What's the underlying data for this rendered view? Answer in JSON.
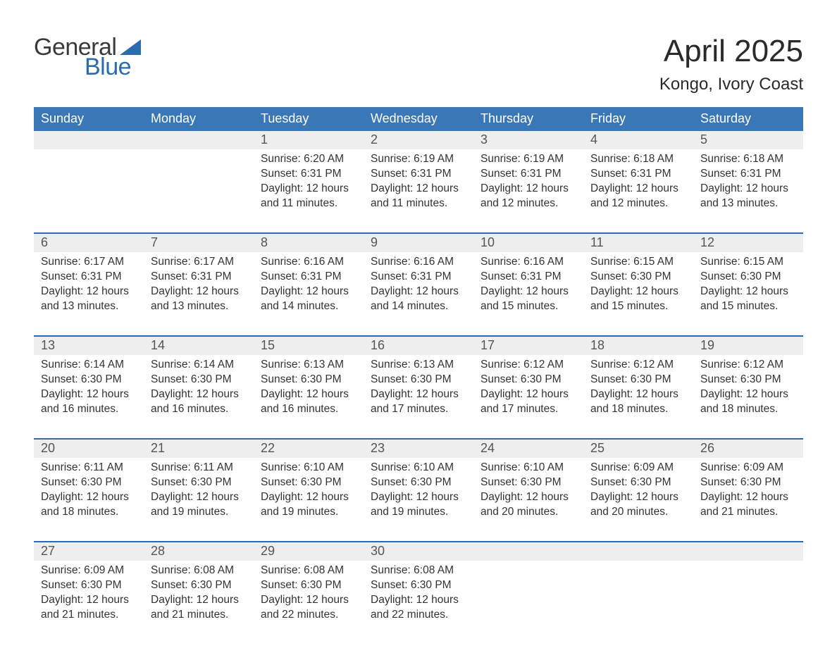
{
  "colors": {
    "header_blue": "#3a77b7",
    "accent_blue": "#2b6bb0",
    "row_gray": "#eeeeee",
    "background": "#ffffff",
    "text": "#333333",
    "logo_gray": "#3a3a3a"
  },
  "logo": {
    "word1": "General",
    "word2": "Blue"
  },
  "title": {
    "month": "April 2025",
    "location": "Kongo, Ivory Coast"
  },
  "days_of_week": [
    "Sunday",
    "Monday",
    "Tuesday",
    "Wednesday",
    "Thursday",
    "Friday",
    "Saturday"
  ],
  "weeks": [
    [
      {
        "date": "",
        "sunrise": "",
        "sunset": "",
        "daylight_l1": "",
        "daylight_l2": ""
      },
      {
        "date": "",
        "sunrise": "",
        "sunset": "",
        "daylight_l1": "",
        "daylight_l2": ""
      },
      {
        "date": "1",
        "sunrise": "Sunrise: 6:20 AM",
        "sunset": "Sunset: 6:31 PM",
        "daylight_l1": "Daylight: 12 hours",
        "daylight_l2": "and 11 minutes."
      },
      {
        "date": "2",
        "sunrise": "Sunrise: 6:19 AM",
        "sunset": "Sunset: 6:31 PM",
        "daylight_l1": "Daylight: 12 hours",
        "daylight_l2": "and 11 minutes."
      },
      {
        "date": "3",
        "sunrise": "Sunrise: 6:19 AM",
        "sunset": "Sunset: 6:31 PM",
        "daylight_l1": "Daylight: 12 hours",
        "daylight_l2": "and 12 minutes."
      },
      {
        "date": "4",
        "sunrise": "Sunrise: 6:18 AM",
        "sunset": "Sunset: 6:31 PM",
        "daylight_l1": "Daylight: 12 hours",
        "daylight_l2": "and 12 minutes."
      },
      {
        "date": "5",
        "sunrise": "Sunrise: 6:18 AM",
        "sunset": "Sunset: 6:31 PM",
        "daylight_l1": "Daylight: 12 hours",
        "daylight_l2": "and 13 minutes."
      }
    ],
    [
      {
        "date": "6",
        "sunrise": "Sunrise: 6:17 AM",
        "sunset": "Sunset: 6:31 PM",
        "daylight_l1": "Daylight: 12 hours",
        "daylight_l2": "and 13 minutes."
      },
      {
        "date": "7",
        "sunrise": "Sunrise: 6:17 AM",
        "sunset": "Sunset: 6:31 PM",
        "daylight_l1": "Daylight: 12 hours",
        "daylight_l2": "and 13 minutes."
      },
      {
        "date": "8",
        "sunrise": "Sunrise: 6:16 AM",
        "sunset": "Sunset: 6:31 PM",
        "daylight_l1": "Daylight: 12 hours",
        "daylight_l2": "and 14 minutes."
      },
      {
        "date": "9",
        "sunrise": "Sunrise: 6:16 AM",
        "sunset": "Sunset: 6:31 PM",
        "daylight_l1": "Daylight: 12 hours",
        "daylight_l2": "and 14 minutes."
      },
      {
        "date": "10",
        "sunrise": "Sunrise: 6:16 AM",
        "sunset": "Sunset: 6:31 PM",
        "daylight_l1": "Daylight: 12 hours",
        "daylight_l2": "and 15 minutes."
      },
      {
        "date": "11",
        "sunrise": "Sunrise: 6:15 AM",
        "sunset": "Sunset: 6:30 PM",
        "daylight_l1": "Daylight: 12 hours",
        "daylight_l2": "and 15 minutes."
      },
      {
        "date": "12",
        "sunrise": "Sunrise: 6:15 AM",
        "sunset": "Sunset: 6:30 PM",
        "daylight_l1": "Daylight: 12 hours",
        "daylight_l2": "and 15 minutes."
      }
    ],
    [
      {
        "date": "13",
        "sunrise": "Sunrise: 6:14 AM",
        "sunset": "Sunset: 6:30 PM",
        "daylight_l1": "Daylight: 12 hours",
        "daylight_l2": "and 16 minutes."
      },
      {
        "date": "14",
        "sunrise": "Sunrise: 6:14 AM",
        "sunset": "Sunset: 6:30 PM",
        "daylight_l1": "Daylight: 12 hours",
        "daylight_l2": "and 16 minutes."
      },
      {
        "date": "15",
        "sunrise": "Sunrise: 6:13 AM",
        "sunset": "Sunset: 6:30 PM",
        "daylight_l1": "Daylight: 12 hours",
        "daylight_l2": "and 16 minutes."
      },
      {
        "date": "16",
        "sunrise": "Sunrise: 6:13 AM",
        "sunset": "Sunset: 6:30 PM",
        "daylight_l1": "Daylight: 12 hours",
        "daylight_l2": "and 17 minutes."
      },
      {
        "date": "17",
        "sunrise": "Sunrise: 6:12 AM",
        "sunset": "Sunset: 6:30 PM",
        "daylight_l1": "Daylight: 12 hours",
        "daylight_l2": "and 17 minutes."
      },
      {
        "date": "18",
        "sunrise": "Sunrise: 6:12 AM",
        "sunset": "Sunset: 6:30 PM",
        "daylight_l1": "Daylight: 12 hours",
        "daylight_l2": "and 18 minutes."
      },
      {
        "date": "19",
        "sunrise": "Sunrise: 6:12 AM",
        "sunset": "Sunset: 6:30 PM",
        "daylight_l1": "Daylight: 12 hours",
        "daylight_l2": "and 18 minutes."
      }
    ],
    [
      {
        "date": "20",
        "sunrise": "Sunrise: 6:11 AM",
        "sunset": "Sunset: 6:30 PM",
        "daylight_l1": "Daylight: 12 hours",
        "daylight_l2": "and 18 minutes."
      },
      {
        "date": "21",
        "sunrise": "Sunrise: 6:11 AM",
        "sunset": "Sunset: 6:30 PM",
        "daylight_l1": "Daylight: 12 hours",
        "daylight_l2": "and 19 minutes."
      },
      {
        "date": "22",
        "sunrise": "Sunrise: 6:10 AM",
        "sunset": "Sunset: 6:30 PM",
        "daylight_l1": "Daylight: 12 hours",
        "daylight_l2": "and 19 minutes."
      },
      {
        "date": "23",
        "sunrise": "Sunrise: 6:10 AM",
        "sunset": "Sunset: 6:30 PM",
        "daylight_l1": "Daylight: 12 hours",
        "daylight_l2": "and 19 minutes."
      },
      {
        "date": "24",
        "sunrise": "Sunrise: 6:10 AM",
        "sunset": "Sunset: 6:30 PM",
        "daylight_l1": "Daylight: 12 hours",
        "daylight_l2": "and 20 minutes."
      },
      {
        "date": "25",
        "sunrise": "Sunrise: 6:09 AM",
        "sunset": "Sunset: 6:30 PM",
        "daylight_l1": "Daylight: 12 hours",
        "daylight_l2": "and 20 minutes."
      },
      {
        "date": "26",
        "sunrise": "Sunrise: 6:09 AM",
        "sunset": "Sunset: 6:30 PM",
        "daylight_l1": "Daylight: 12 hours",
        "daylight_l2": "and 21 minutes."
      }
    ],
    [
      {
        "date": "27",
        "sunrise": "Sunrise: 6:09 AM",
        "sunset": "Sunset: 6:30 PM",
        "daylight_l1": "Daylight: 12 hours",
        "daylight_l2": "and 21 minutes."
      },
      {
        "date": "28",
        "sunrise": "Sunrise: 6:08 AM",
        "sunset": "Sunset: 6:30 PM",
        "daylight_l1": "Daylight: 12 hours",
        "daylight_l2": "and 21 minutes."
      },
      {
        "date": "29",
        "sunrise": "Sunrise: 6:08 AM",
        "sunset": "Sunset: 6:30 PM",
        "daylight_l1": "Daylight: 12 hours",
        "daylight_l2": "and 22 minutes."
      },
      {
        "date": "30",
        "sunrise": "Sunrise: 6:08 AM",
        "sunset": "Sunset: 6:30 PM",
        "daylight_l1": "Daylight: 12 hours",
        "daylight_l2": "and 22 minutes."
      },
      {
        "date": "",
        "sunrise": "",
        "sunset": "",
        "daylight_l1": "",
        "daylight_l2": ""
      },
      {
        "date": "",
        "sunrise": "",
        "sunset": "",
        "daylight_l1": "",
        "daylight_l2": ""
      },
      {
        "date": "",
        "sunrise": "",
        "sunset": "",
        "daylight_l1": "",
        "daylight_l2": ""
      }
    ]
  ]
}
